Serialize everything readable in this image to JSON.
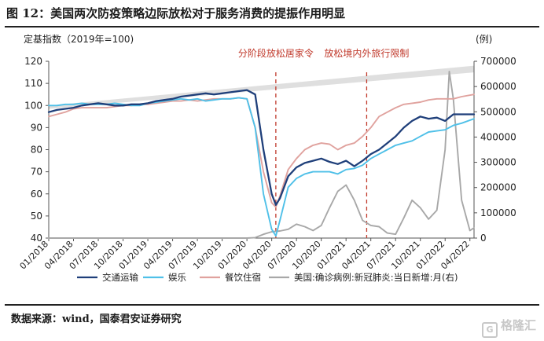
{
  "figure": {
    "title": "图 12：美国两次防疫策略边际放松对于服务消费的提振作用明显",
    "source": "数据来源：wind，国泰君安证券研究",
    "watermark": "格隆汇"
  },
  "chart_data": {
    "type": "line",
    "left_axis_label": "定基指数（2019年=100)",
    "right_axis_label": "(例)",
    "left_ylim": [
      40,
      120
    ],
    "left_ticks": [
      40,
      50,
      60,
      70,
      80,
      90,
      100,
      110,
      120
    ],
    "right_ylim": [
      0,
      700000
    ],
    "right_ticks": [
      "0",
      "100000",
      "200000",
      "300000",
      "400000",
      "500000",
      "600000",
      "700000"
    ],
    "x_tick_labels": [
      "01/2018",
      "04/2018",
      "07/2018",
      "10/2018",
      "01/2019",
      "04/2019",
      "07/2019",
      "10/2019",
      "01/2020",
      "04/2020",
      "07/2020",
      "10/2020",
      "01/2021",
      "04/2021",
      "07/2021",
      "10/2021",
      "01/2022",
      "04/2022"
    ],
    "x_range": [
      0,
      51.5
    ],
    "annotations": [
      {
        "text": "分阶段放松居家令",
        "x": 27.5
      },
      {
        "text": "放松境内外旅行限制",
        "x": 38.5
      }
    ],
    "trend_band": {
      "x": [
        0,
        51.5
      ],
      "lower": [
        98.5,
        115.0
      ],
      "upper": [
        100.0,
        118.0
      ]
    },
    "series": [
      {
        "name": "交通运输",
        "axis": "left",
        "color": "#1f3f7a",
        "values": [
          [
            0,
            97
          ],
          [
            1,
            98
          ],
          [
            2,
            98.5
          ],
          [
            3,
            99
          ],
          [
            4,
            100
          ],
          [
            5,
            100.5
          ],
          [
            6,
            101
          ],
          [
            7,
            100.5
          ],
          [
            8,
            100
          ],
          [
            9,
            100
          ],
          [
            10,
            100.5
          ],
          [
            11,
            100.5
          ],
          [
            12,
            101
          ],
          [
            13,
            102
          ],
          [
            14,
            102.5
          ],
          [
            15,
            103
          ],
          [
            16,
            104
          ],
          [
            17,
            104.5
          ],
          [
            18,
            105
          ],
          [
            19,
            105.5
          ],
          [
            20,
            105
          ],
          [
            21,
            105.5
          ],
          [
            22,
            106
          ],
          [
            23,
            106.5
          ],
          [
            24,
            107
          ],
          [
            25,
            105
          ],
          [
            26,
            80
          ],
          [
            27,
            60
          ],
          [
            27.5,
            55
          ],
          [
            28,
            58
          ],
          [
            29,
            68
          ],
          [
            30,
            72
          ],
          [
            31,
            74
          ],
          [
            32,
            75
          ],
          [
            33,
            76
          ],
          [
            34,
            74.5
          ],
          [
            35,
            73.5
          ],
          [
            36,
            75
          ],
          [
            37,
            72.5
          ],
          [
            38,
            75
          ],
          [
            39,
            78
          ],
          [
            40,
            80
          ],
          [
            41,
            83
          ],
          [
            42,
            86
          ],
          [
            43,
            90
          ],
          [
            44,
            93
          ],
          [
            45,
            95
          ],
          [
            46,
            94
          ],
          [
            47,
            94.5
          ],
          [
            48,
            93
          ],
          [
            49,
            96
          ],
          [
            50,
            96
          ],
          [
            51.5,
            96
          ]
        ]
      },
      {
        "name": "娱乐",
        "axis": "left",
        "color": "#4fc0e8",
        "values": [
          [
            0,
            100
          ],
          [
            1,
            100
          ],
          [
            2,
            100.5
          ],
          [
            3,
            100.5
          ],
          [
            4,
            101
          ],
          [
            5,
            100.5
          ],
          [
            6,
            100.5
          ],
          [
            7,
            100.5
          ],
          [
            8,
            101
          ],
          [
            9,
            100.5
          ],
          [
            10,
            100
          ],
          [
            11,
            100
          ],
          [
            12,
            101
          ],
          [
            13,
            101.5
          ],
          [
            14,
            102
          ],
          [
            15,
            102.5
          ],
          [
            16,
            103
          ],
          [
            17,
            102.5
          ],
          [
            18,
            103
          ],
          [
            19,
            102
          ],
          [
            20,
            102.5
          ],
          [
            21,
            103
          ],
          [
            22,
            103
          ],
          [
            23,
            103.5
          ],
          [
            24,
            103
          ],
          [
            25,
            90
          ],
          [
            26,
            60
          ],
          [
            27,
            44
          ],
          [
            27.5,
            41
          ],
          [
            28,
            48
          ],
          [
            29,
            63
          ],
          [
            30,
            67
          ],
          [
            31,
            69
          ],
          [
            32,
            70
          ],
          [
            33,
            70
          ],
          [
            34,
            70
          ],
          [
            35,
            69
          ],
          [
            36,
            71
          ],
          [
            37,
            71.5
          ],
          [
            38,
            73
          ],
          [
            39,
            76
          ],
          [
            40,
            78
          ],
          [
            41,
            80
          ],
          [
            42,
            82
          ],
          [
            43,
            83
          ],
          [
            44,
            84
          ],
          [
            45,
            86
          ],
          [
            46,
            88
          ],
          [
            47,
            88.5
          ],
          [
            48,
            89
          ],
          [
            49,
            91
          ],
          [
            50,
            92
          ],
          [
            51.5,
            94
          ]
        ]
      },
      {
        "name": "餐饮住宿",
        "axis": "left",
        "color": "#e0a29e",
        "values": [
          [
            0,
            95
          ],
          [
            1,
            96
          ],
          [
            2,
            97
          ],
          [
            3,
            98.5
          ],
          [
            4,
            99
          ],
          [
            5,
            99
          ],
          [
            6,
            99
          ],
          [
            7,
            99
          ],
          [
            8,
            99.5
          ],
          [
            9,
            100
          ],
          [
            10,
            100
          ],
          [
            11,
            100.5
          ],
          [
            12,
            100.5
          ],
          [
            13,
            101
          ],
          [
            14,
            101.5
          ],
          [
            15,
            102
          ],
          [
            16,
            102
          ],
          [
            17,
            102.5
          ],
          [
            18,
            102
          ],
          [
            19,
            102.5
          ],
          [
            20,
            103
          ],
          [
            21,
            103
          ],
          [
            22,
            103
          ],
          [
            23,
            103.5
          ],
          [
            24,
            103
          ],
          [
            25,
            90
          ],
          [
            26,
            70
          ],
          [
            27,
            56
          ],
          [
            27.5,
            54
          ],
          [
            28,
            59
          ],
          [
            29,
            71
          ],
          [
            30,
            76
          ],
          [
            31,
            80
          ],
          [
            32,
            82
          ],
          [
            33,
            83
          ],
          [
            34,
            82.5
          ],
          [
            35,
            80
          ],
          [
            36,
            82
          ],
          [
            37,
            83
          ],
          [
            38,
            86
          ],
          [
            39,
            90
          ],
          [
            40,
            95
          ],
          [
            41,
            97
          ],
          [
            42,
            99
          ],
          [
            43,
            100.5
          ],
          [
            44,
            101
          ],
          [
            45,
            101.5
          ],
          [
            46,
            102.5
          ],
          [
            47,
            103
          ],
          [
            48,
            103
          ],
          [
            49,
            103
          ],
          [
            50,
            104
          ],
          [
            51.5,
            105
          ]
        ]
      },
      {
        "name": "美国:确诊病例:新冠肺炎:当日新增:月(右)",
        "axis": "right",
        "color": "#a8a8a8",
        "values": [
          [
            0,
            0
          ],
          [
            24,
            0
          ],
          [
            25,
            2000
          ],
          [
            26,
            15000
          ],
          [
            27,
            25000
          ],
          [
            28,
            28000
          ],
          [
            29,
            35000
          ],
          [
            30,
            55000
          ],
          [
            31,
            45000
          ],
          [
            32,
            30000
          ],
          [
            33,
            50000
          ],
          [
            34,
            120000
          ],
          [
            35,
            185000
          ],
          [
            36,
            210000
          ],
          [
            37,
            150000
          ],
          [
            38,
            70000
          ],
          [
            39,
            50000
          ],
          [
            40,
            45000
          ],
          [
            41,
            20000
          ],
          [
            42,
            15000
          ],
          [
            43,
            80000
          ],
          [
            44,
            150000
          ],
          [
            45,
            120000
          ],
          [
            46,
            75000
          ],
          [
            47,
            110000
          ],
          [
            48,
            350000
          ],
          [
            48.5,
            660000
          ],
          [
            49,
            550000
          ],
          [
            50,
            150000
          ],
          [
            51,
            30000
          ],
          [
            51.5,
            40000
          ]
        ]
      }
    ],
    "legend": [
      "交通运输",
      "娱乐",
      "餐饮住宿",
      "美国:确诊病例:新冠肺炎:当日新增:月(右)"
    ]
  }
}
